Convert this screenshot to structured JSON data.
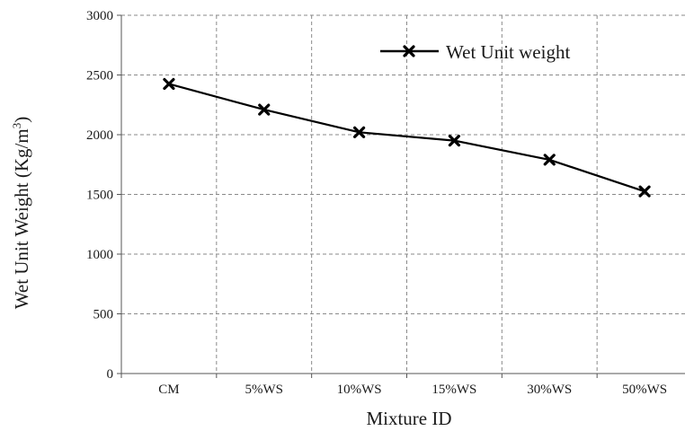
{
  "chart_data": {
    "type": "line",
    "categories": [
      "CM",
      "5%WS",
      "10%WS",
      "15%WS",
      "30%WS",
      "50%WS"
    ],
    "series": [
      {
        "name": "Wet Unit weight",
        "values": [
          2425,
          2210,
          2020,
          1950,
          1790,
          1525
        ],
        "color": "#000000",
        "marker": "x"
      }
    ],
    "xlabel": "Mixture ID",
    "ylabel": {
      "main": "Wet Unit Weight (Kg/m",
      "sup": "3",
      "end": ")"
    },
    "ylim": [
      0,
      3000
    ],
    "yticks": [
      0,
      500,
      1000,
      1500,
      2000,
      2500,
      3000
    ],
    "grid": true,
    "legend_position": "top-right"
  }
}
